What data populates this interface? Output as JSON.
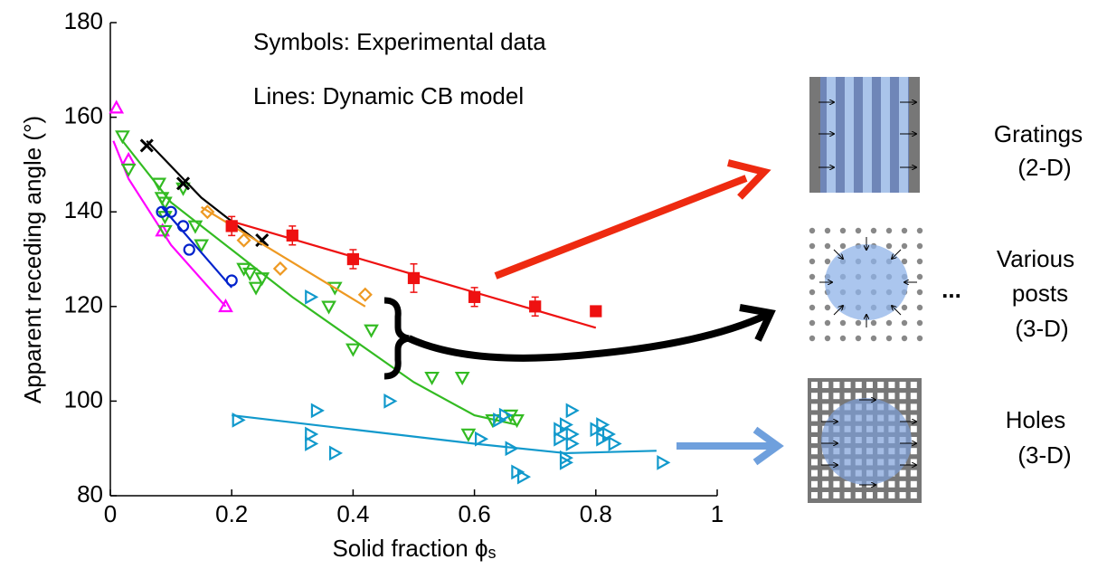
{
  "chart_data": {
    "type": "scatter",
    "x_label": "Solid fraction ϕ",
    "x_label_subscript": "s",
    "y_label": "Apparent receding angle (°)",
    "annotations": [
      "Symbols: Experimental data",
      "Lines: Dynamic CB model"
    ],
    "xlim": [
      0,
      1
    ],
    "ylim": [
      80,
      180
    ],
    "xticks": [
      0,
      0.2,
      0.4,
      0.6,
      0.8,
      1
    ],
    "yticks": [
      80,
      100,
      120,
      140,
      160,
      180
    ],
    "series": [
      {
        "color": "#ff00ff",
        "marker": "triangle-up",
        "x": [
          0.01,
          0.03,
          0.086,
          0.19
        ],
        "values": [
          162,
          151,
          136,
          120
        ],
        "fit_x": [
          0.005,
          0.03,
          0.1,
          0.19
        ],
        "fit_values": [
          155,
          147,
          133,
          120
        ]
      },
      {
        "color": "#33bb22",
        "marker": "triangle-down",
        "x": [
          0.02,
          0.03,
          0.08,
          0.085,
          0.09,
          0.09,
          0.09,
          0.12,
          0.14,
          0.15,
          0.22,
          0.23,
          0.24,
          0.25,
          0.37,
          0.36,
          0.4,
          0.43,
          0.53,
          0.58,
          0.59,
          0.63,
          0.66,
          0.67
        ],
        "values": [
          156,
          149,
          146,
          143,
          142,
          139,
          136,
          145,
          137,
          133,
          128,
          127,
          124,
          126,
          124,
          120,
          111,
          115,
          105,
          105,
          93,
          96,
          97,
          96
        ],
        "fit_x": [
          0.02,
          0.1,
          0.2,
          0.3,
          0.4,
          0.5,
          0.6,
          0.67
        ],
        "fit_values": [
          155,
          142,
          132,
          122,
          113,
          104,
          97,
          95
        ]
      },
      {
        "color": "#0022cc",
        "marker": "circle",
        "x": [
          0.085,
          0.1,
          0.12,
          0.13,
          0.2
        ],
        "values": [
          140,
          140,
          137,
          132,
          125.5
        ],
        "fit_x": [
          0.085,
          0.2
        ],
        "fit_values": [
          141,
          124
        ]
      },
      {
        "color": "#000000",
        "marker": "x",
        "x": [
          0.06,
          0.12,
          0.25
        ],
        "values": [
          154,
          146,
          134
        ],
        "fit_x": [
          0.06,
          0.15,
          0.25
        ],
        "fit_values": [
          155,
          143,
          133
        ]
      },
      {
        "color": "#ee9922",
        "marker": "diamond",
        "x": [
          0.16,
          0.22,
          0.28,
          0.42
        ],
        "values": [
          140,
          134,
          128,
          122.5
        ],
        "fit_x": [
          0.15,
          0.42
        ],
        "fit_values": [
          141,
          120
        ]
      },
      {
        "color": "#ee1111",
        "marker": "square",
        "x": [
          0.2,
          0.3,
          0.4,
          0.5,
          0.6,
          0.7,
          0.8
        ],
        "values": [
          137,
          135,
          130,
          126,
          122,
          120,
          119
        ],
        "errors": [
          2,
          2,
          2,
          3,
          2,
          2,
          0
        ],
        "fit_x": [
          0.2,
          0.8
        ],
        "fit_values": [
          138,
          115.5
        ]
      },
      {
        "color": "#1199cc",
        "marker": "triangle-right",
        "x": [
          0.21,
          0.33,
          0.33,
          0.34,
          0.33,
          0.37,
          0.46,
          0.61,
          0.66,
          0.64,
          0.65,
          0.67,
          0.68,
          0.74,
          0.74,
          0.75,
          0.75,
          0.75,
          0.76,
          0.76,
          0.76,
          0.8,
          0.81,
          0.81,
          0.82,
          0.83,
          0.91
        ],
        "values": [
          96,
          93,
          91,
          98,
          122,
          89,
          100,
          92,
          90,
          96,
          97,
          85,
          84,
          94,
          92,
          95,
          88,
          87,
          98,
          93,
          91,
          94,
          95,
          92,
          93,
          91,
          87
        ],
        "fit_x": [
          0.2,
          0.4,
          0.6,
          0.75,
          0.9
        ],
        "fit_values": [
          97,
          94,
          91,
          89,
          89.5
        ]
      }
    ]
  },
  "schematics": [
    {
      "label_lines": [
        "Gratings",
        "(2-D)"
      ]
    },
    {
      "label_lines": [
        "Various",
        "posts",
        "(3-D)"
      ],
      "ellipsis": "..."
    },
    {
      "label_lines": [
        "Holes",
        "(3-D)"
      ]
    }
  ]
}
